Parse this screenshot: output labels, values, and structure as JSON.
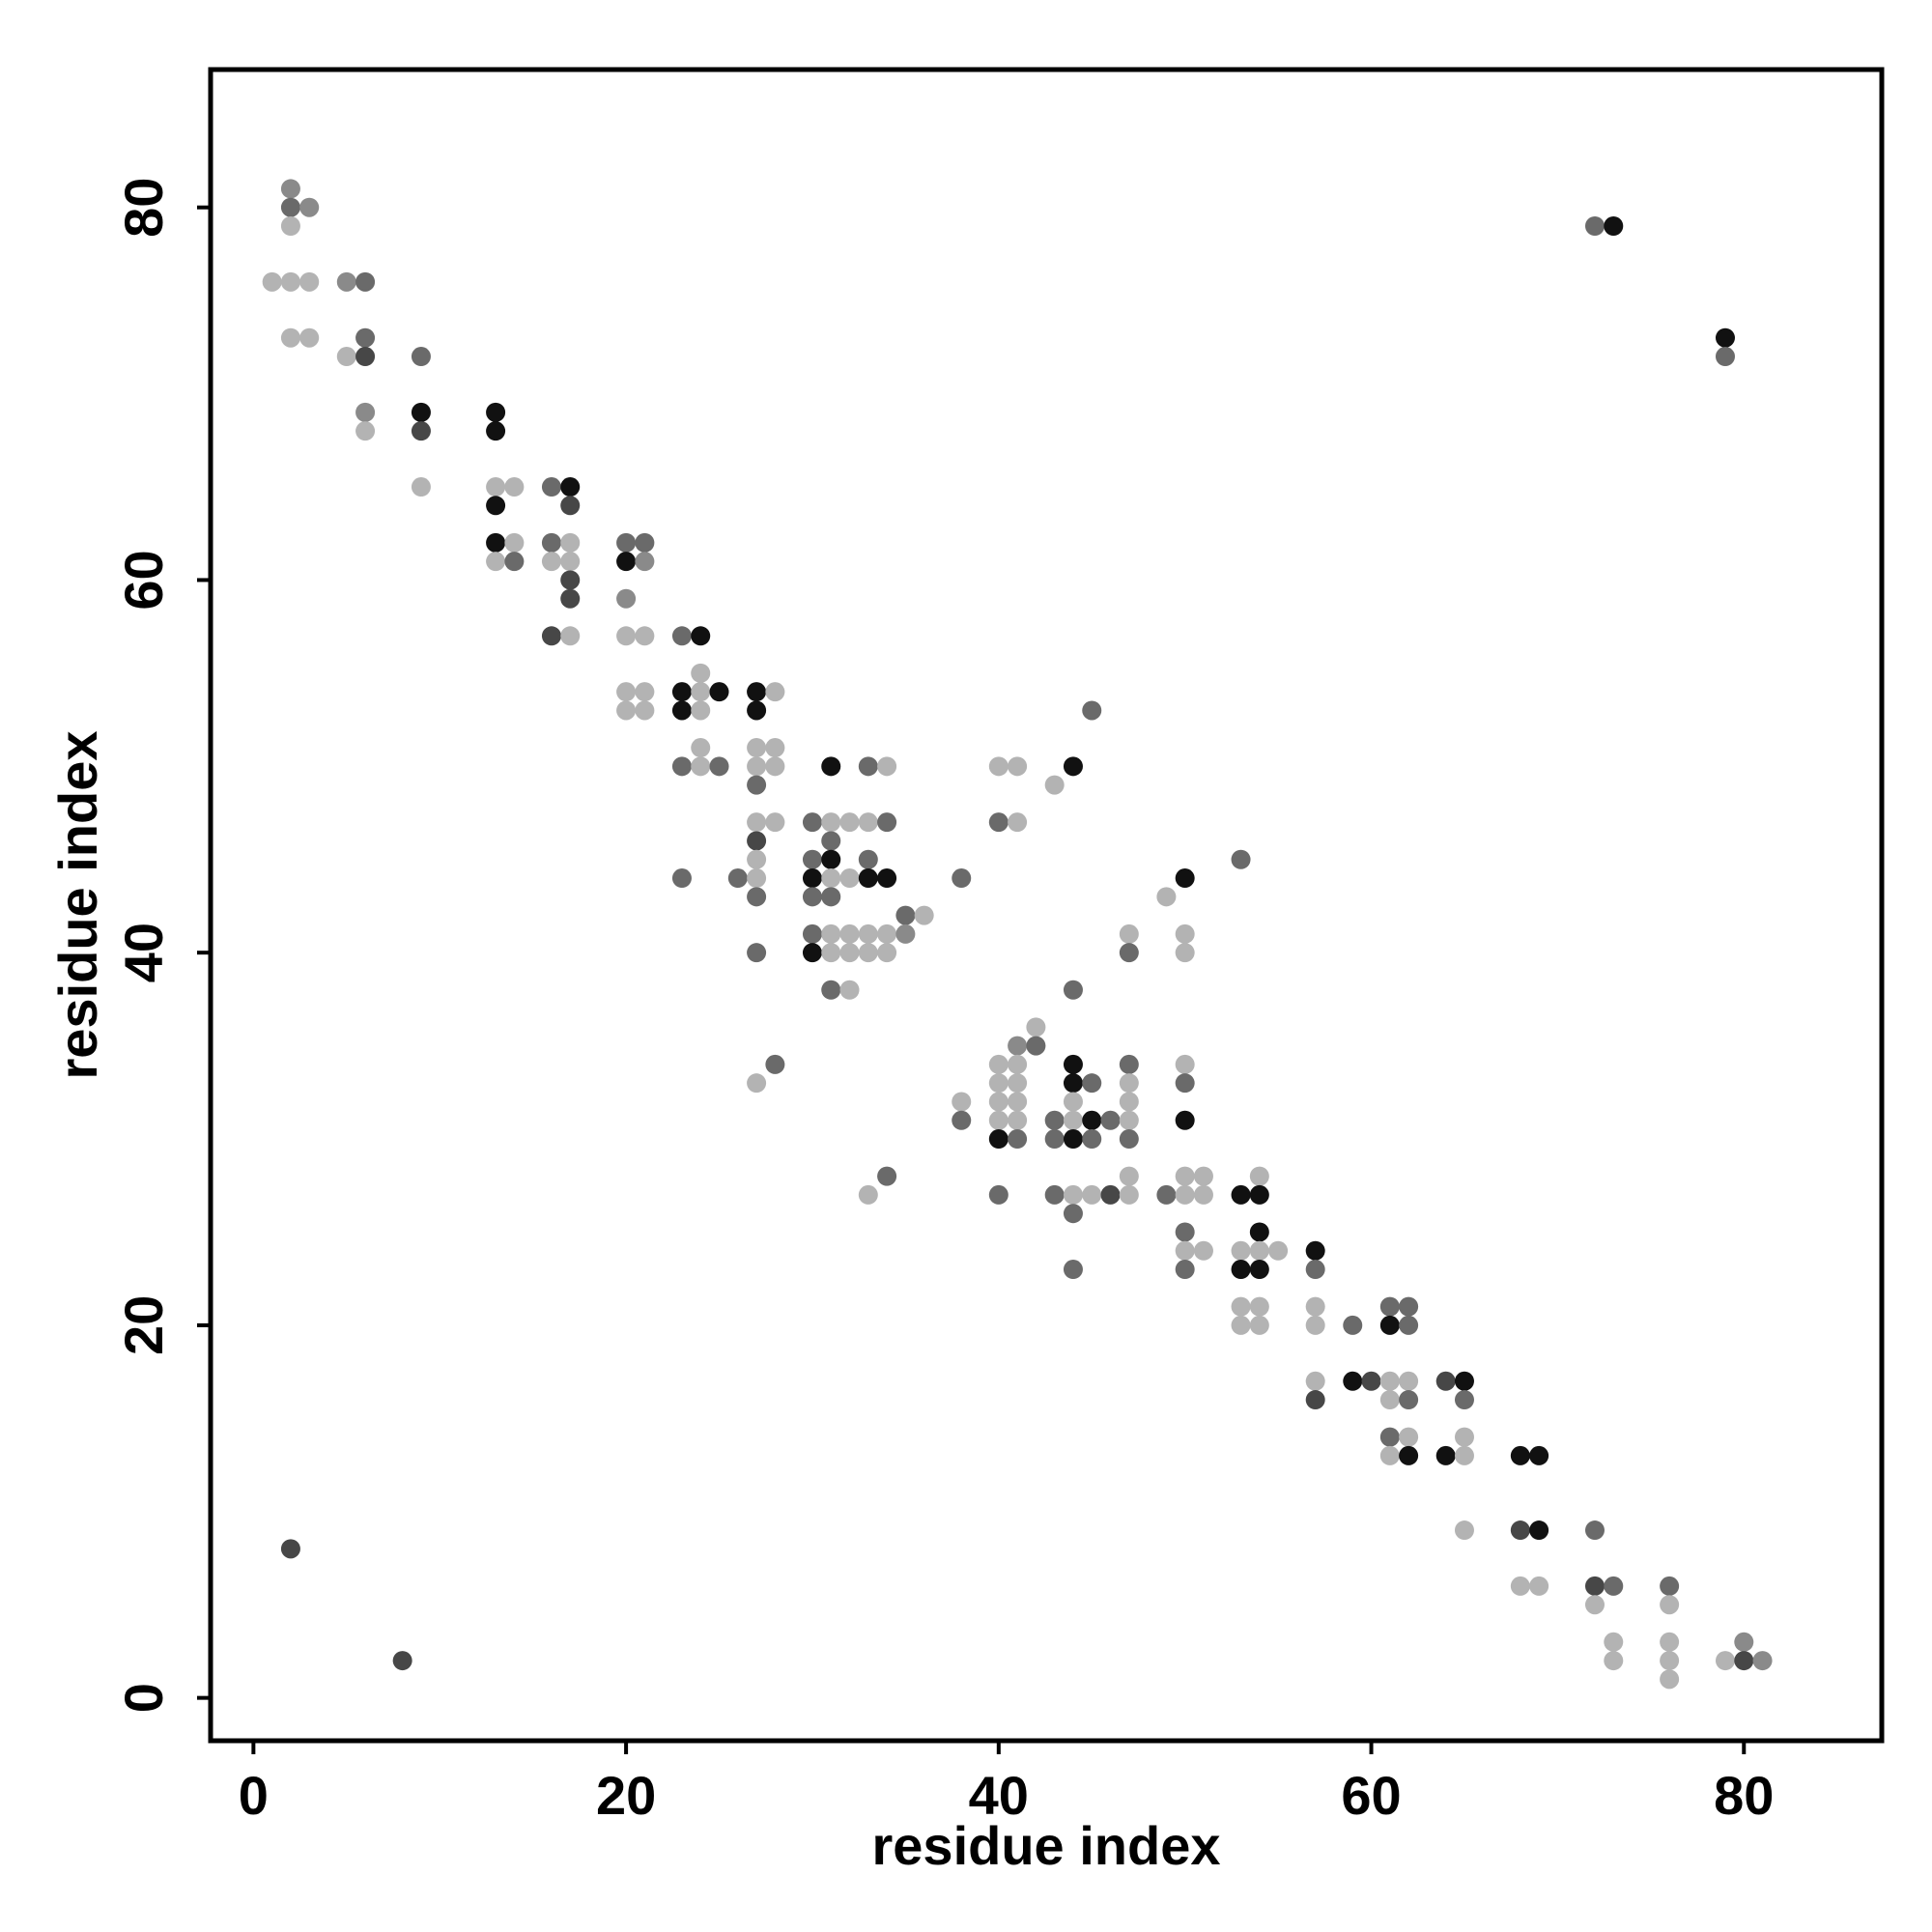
{
  "chart_data": {
    "type": "scatter",
    "title": "",
    "xlabel": "residue index",
    "ylabel": "residue index",
    "xlim": [
      -2.3,
      87.4
    ],
    "ylim": [
      -2.3,
      87.4
    ],
    "xticks": [
      0,
      20,
      40,
      60,
      80
    ],
    "yticks": [
      0,
      20,
      40,
      60,
      80
    ],
    "grid": false,
    "legend": "none",
    "shade_colors": {
      "light": "#b3b3b3",
      "mid": "#8a8a8a",
      "dark": "#6a6a6a",
      "darker": "#474747",
      "black": "#111111"
    },
    "points": [
      {
        "x": 2,
        "y": 81,
        "shade": "mid"
      },
      {
        "x": 2,
        "y": 80,
        "shade": "dark"
      },
      {
        "x": 3,
        "y": 80,
        "shade": "mid"
      },
      {
        "x": 2,
        "y": 79,
        "shade": "light"
      },
      {
        "x": 1,
        "y": 76,
        "shade": "light"
      },
      {
        "x": 2,
        "y": 76,
        "shade": "light"
      },
      {
        "x": 3,
        "y": 76,
        "shade": "light"
      },
      {
        "x": 5,
        "y": 76,
        "shade": "mid"
      },
      {
        "x": 6,
        "y": 76,
        "shade": "dark"
      },
      {
        "x": 2,
        "y": 73,
        "shade": "light"
      },
      {
        "x": 3,
        "y": 73,
        "shade": "light"
      },
      {
        "x": 6,
        "y": 73,
        "shade": "dark"
      },
      {
        "x": 5,
        "y": 72,
        "shade": "light"
      },
      {
        "x": 6,
        "y": 72,
        "shade": "darker"
      },
      {
        "x": 9,
        "y": 72,
        "shade": "dark"
      },
      {
        "x": 6,
        "y": 69,
        "shade": "mid"
      },
      {
        "x": 9,
        "y": 69,
        "shade": "black"
      },
      {
        "x": 13,
        "y": 69,
        "shade": "black"
      },
      {
        "x": 6,
        "y": 68,
        "shade": "light"
      },
      {
        "x": 9,
        "y": 68,
        "shade": "darker"
      },
      {
        "x": 13,
        "y": 68,
        "shade": "black"
      },
      {
        "x": 9,
        "y": 65,
        "shade": "light"
      },
      {
        "x": 13,
        "y": 65,
        "shade": "light"
      },
      {
        "x": 14,
        "y": 65,
        "shade": "light"
      },
      {
        "x": 16,
        "y": 65,
        "shade": "dark"
      },
      {
        "x": 17,
        "y": 65,
        "shade": "black"
      },
      {
        "x": 13,
        "y": 64,
        "shade": "black"
      },
      {
        "x": 17,
        "y": 64,
        "shade": "darker"
      },
      {
        "x": 13,
        "y": 62,
        "shade": "black"
      },
      {
        "x": 14,
        "y": 62,
        "shade": "light"
      },
      {
        "x": 16,
        "y": 62,
        "shade": "dark"
      },
      {
        "x": 17,
        "y": 62,
        "shade": "light"
      },
      {
        "x": 20,
        "y": 62,
        "shade": "dark"
      },
      {
        "x": 21,
        "y": 62,
        "shade": "dark"
      },
      {
        "x": 13,
        "y": 61,
        "shade": "light"
      },
      {
        "x": 14,
        "y": 61,
        "shade": "dark"
      },
      {
        "x": 16,
        "y": 61,
        "shade": "light"
      },
      {
        "x": 17,
        "y": 61,
        "shade": "light"
      },
      {
        "x": 20,
        "y": 61,
        "shade": "black"
      },
      {
        "x": 21,
        "y": 61,
        "shade": "mid"
      },
      {
        "x": 17,
        "y": 60,
        "shade": "darker"
      },
      {
        "x": 17,
        "y": 59,
        "shade": "darker"
      },
      {
        "x": 20,
        "y": 59,
        "shade": "mid"
      },
      {
        "x": 16,
        "y": 57,
        "shade": "darker"
      },
      {
        "x": 17,
        "y": 57,
        "shade": "light"
      },
      {
        "x": 20,
        "y": 57,
        "shade": "light"
      },
      {
        "x": 21,
        "y": 57,
        "shade": "light"
      },
      {
        "x": 23,
        "y": 57,
        "shade": "dark"
      },
      {
        "x": 24,
        "y": 57,
        "shade": "black"
      },
      {
        "x": 24,
        "y": 55,
        "shade": "light"
      },
      {
        "x": 20,
        "y": 54,
        "shade": "light"
      },
      {
        "x": 21,
        "y": 54,
        "shade": "light"
      },
      {
        "x": 23,
        "y": 54,
        "shade": "black"
      },
      {
        "x": 24,
        "y": 54,
        "shade": "light"
      },
      {
        "x": 25,
        "y": 54,
        "shade": "black"
      },
      {
        "x": 27,
        "y": 54,
        "shade": "black"
      },
      {
        "x": 28,
        "y": 54,
        "shade": "light"
      },
      {
        "x": 20,
        "y": 53,
        "shade": "light"
      },
      {
        "x": 21,
        "y": 53,
        "shade": "light"
      },
      {
        "x": 23,
        "y": 53,
        "shade": "black"
      },
      {
        "x": 24,
        "y": 53,
        "shade": "light"
      },
      {
        "x": 27,
        "y": 53,
        "shade": "black"
      },
      {
        "x": 45,
        "y": 53,
        "shade": "dark"
      },
      {
        "x": 24,
        "y": 51,
        "shade": "light"
      },
      {
        "x": 27,
        "y": 51,
        "shade": "light"
      },
      {
        "x": 28,
        "y": 51,
        "shade": "light"
      },
      {
        "x": 23,
        "y": 50,
        "shade": "dark"
      },
      {
        "x": 24,
        "y": 50,
        "shade": "light"
      },
      {
        "x": 25,
        "y": 50,
        "shade": "dark"
      },
      {
        "x": 27,
        "y": 50,
        "shade": "light"
      },
      {
        "x": 28,
        "y": 50,
        "shade": "light"
      },
      {
        "x": 31,
        "y": 50,
        "shade": "black"
      },
      {
        "x": 33,
        "y": 50,
        "shade": "dark"
      },
      {
        "x": 34,
        "y": 50,
        "shade": "light"
      },
      {
        "x": 40,
        "y": 50,
        "shade": "light"
      },
      {
        "x": 41,
        "y": 50,
        "shade": "light"
      },
      {
        "x": 44,
        "y": 50,
        "shade": "black"
      },
      {
        "x": 27,
        "y": 49,
        "shade": "dark"
      },
      {
        "x": 43,
        "y": 49,
        "shade": "light"
      },
      {
        "x": 27,
        "y": 47,
        "shade": "light"
      },
      {
        "x": 28,
        "y": 47,
        "shade": "light"
      },
      {
        "x": 30,
        "y": 47,
        "shade": "dark"
      },
      {
        "x": 31,
        "y": 47,
        "shade": "light"
      },
      {
        "x": 32,
        "y": 47,
        "shade": "light"
      },
      {
        "x": 33,
        "y": 47,
        "shade": "light"
      },
      {
        "x": 34,
        "y": 47,
        "shade": "dark"
      },
      {
        "x": 40,
        "y": 47,
        "shade": "dark"
      },
      {
        "x": 41,
        "y": 47,
        "shade": "light"
      },
      {
        "x": 27,
        "y": 46,
        "shade": "darker"
      },
      {
        "x": 31,
        "y": 46,
        "shade": "dark"
      },
      {
        "x": 27,
        "y": 45,
        "shade": "light"
      },
      {
        "x": 30,
        "y": 45,
        "shade": "dark"
      },
      {
        "x": 31,
        "y": 45,
        "shade": "black"
      },
      {
        "x": 33,
        "y": 45,
        "shade": "dark"
      },
      {
        "x": 53,
        "y": 45,
        "shade": "dark"
      },
      {
        "x": 23,
        "y": 44,
        "shade": "dark"
      },
      {
        "x": 26,
        "y": 44,
        "shade": "dark"
      },
      {
        "x": 27,
        "y": 44,
        "shade": "light"
      },
      {
        "x": 30,
        "y": 44,
        "shade": "black"
      },
      {
        "x": 31,
        "y": 44,
        "shade": "light"
      },
      {
        "x": 32,
        "y": 44,
        "shade": "light"
      },
      {
        "x": 33,
        "y": 44,
        "shade": "black"
      },
      {
        "x": 34,
        "y": 44,
        "shade": "black"
      },
      {
        "x": 38,
        "y": 44,
        "shade": "dark"
      },
      {
        "x": 50,
        "y": 44,
        "shade": "black"
      },
      {
        "x": 27,
        "y": 43,
        "shade": "dark"
      },
      {
        "x": 30,
        "y": 43,
        "shade": "dark"
      },
      {
        "x": 31,
        "y": 43,
        "shade": "dark"
      },
      {
        "x": 49,
        "y": 43,
        "shade": "light"
      },
      {
        "x": 35,
        "y": 42,
        "shade": "dark"
      },
      {
        "x": 36,
        "y": 42,
        "shade": "light"
      },
      {
        "x": 30,
        "y": 41,
        "shade": "dark"
      },
      {
        "x": 31,
        "y": 41,
        "shade": "light"
      },
      {
        "x": 32,
        "y": 41,
        "shade": "light"
      },
      {
        "x": 33,
        "y": 41,
        "shade": "light"
      },
      {
        "x": 34,
        "y": 41,
        "shade": "light"
      },
      {
        "x": 35,
        "y": 41,
        "shade": "mid"
      },
      {
        "x": 47,
        "y": 41,
        "shade": "light"
      },
      {
        "x": 50,
        "y": 41,
        "shade": "light"
      },
      {
        "x": 27,
        "y": 40,
        "shade": "dark"
      },
      {
        "x": 30,
        "y": 40,
        "shade": "black"
      },
      {
        "x": 31,
        "y": 40,
        "shade": "light"
      },
      {
        "x": 32,
        "y": 40,
        "shade": "light"
      },
      {
        "x": 33,
        "y": 40,
        "shade": "light"
      },
      {
        "x": 34,
        "y": 40,
        "shade": "light"
      },
      {
        "x": 47,
        "y": 40,
        "shade": "dark"
      },
      {
        "x": 50,
        "y": 40,
        "shade": "light"
      },
      {
        "x": 31,
        "y": 38,
        "shade": "dark"
      },
      {
        "x": 32,
        "y": 38,
        "shade": "light"
      },
      {
        "x": 44,
        "y": 38,
        "shade": "dark"
      },
      {
        "x": 42,
        "y": 36,
        "shade": "light"
      },
      {
        "x": 41,
        "y": 35,
        "shade": "mid"
      },
      {
        "x": 42,
        "y": 35,
        "shade": "dark"
      },
      {
        "x": 28,
        "y": 34,
        "shade": "dark"
      },
      {
        "x": 40,
        "y": 34,
        "shade": "light"
      },
      {
        "x": 41,
        "y": 34,
        "shade": "light"
      },
      {
        "x": 44,
        "y": 34,
        "shade": "black"
      },
      {
        "x": 47,
        "y": 34,
        "shade": "dark"
      },
      {
        "x": 50,
        "y": 34,
        "shade": "light"
      },
      {
        "x": 27,
        "y": 33,
        "shade": "light"
      },
      {
        "x": 40,
        "y": 33,
        "shade": "light"
      },
      {
        "x": 41,
        "y": 33,
        "shade": "light"
      },
      {
        "x": 44,
        "y": 33,
        "shade": "black"
      },
      {
        "x": 45,
        "y": 33,
        "shade": "dark"
      },
      {
        "x": 47,
        "y": 33,
        "shade": "light"
      },
      {
        "x": 50,
        "y": 33,
        "shade": "dark"
      },
      {
        "x": 38,
        "y": 32,
        "shade": "light"
      },
      {
        "x": 40,
        "y": 32,
        "shade": "light"
      },
      {
        "x": 41,
        "y": 32,
        "shade": "light"
      },
      {
        "x": 44,
        "y": 32,
        "shade": "light"
      },
      {
        "x": 47,
        "y": 32,
        "shade": "light"
      },
      {
        "x": 38,
        "y": 31,
        "shade": "dark"
      },
      {
        "x": 40,
        "y": 31,
        "shade": "light"
      },
      {
        "x": 41,
        "y": 31,
        "shade": "light"
      },
      {
        "x": 43,
        "y": 31,
        "shade": "dark"
      },
      {
        "x": 44,
        "y": 31,
        "shade": "light"
      },
      {
        "x": 45,
        "y": 31,
        "shade": "black"
      },
      {
        "x": 46,
        "y": 31,
        "shade": "dark"
      },
      {
        "x": 47,
        "y": 31,
        "shade": "light"
      },
      {
        "x": 50,
        "y": 31,
        "shade": "black"
      },
      {
        "x": 40,
        "y": 30,
        "shade": "black"
      },
      {
        "x": 41,
        "y": 30,
        "shade": "dark"
      },
      {
        "x": 43,
        "y": 30,
        "shade": "dark"
      },
      {
        "x": 44,
        "y": 30,
        "shade": "black"
      },
      {
        "x": 45,
        "y": 30,
        "shade": "dark"
      },
      {
        "x": 47,
        "y": 30,
        "shade": "dark"
      },
      {
        "x": 34,
        "y": 28,
        "shade": "dark"
      },
      {
        "x": 47,
        "y": 28,
        "shade": "light"
      },
      {
        "x": 50,
        "y": 28,
        "shade": "light"
      },
      {
        "x": 51,
        "y": 28,
        "shade": "light"
      },
      {
        "x": 54,
        "y": 28,
        "shade": "light"
      },
      {
        "x": 33,
        "y": 27,
        "shade": "light"
      },
      {
        "x": 40,
        "y": 27,
        "shade": "dark"
      },
      {
        "x": 43,
        "y": 27,
        "shade": "dark"
      },
      {
        "x": 44,
        "y": 27,
        "shade": "light"
      },
      {
        "x": 45,
        "y": 27,
        "shade": "light"
      },
      {
        "x": 46,
        "y": 27,
        "shade": "darker"
      },
      {
        "x": 47,
        "y": 27,
        "shade": "light"
      },
      {
        "x": 49,
        "y": 27,
        "shade": "dark"
      },
      {
        "x": 50,
        "y": 27,
        "shade": "light"
      },
      {
        "x": 51,
        "y": 27,
        "shade": "light"
      },
      {
        "x": 53,
        "y": 27,
        "shade": "black"
      },
      {
        "x": 54,
        "y": 27,
        "shade": "black"
      },
      {
        "x": 44,
        "y": 26,
        "shade": "dark"
      },
      {
        "x": 50,
        "y": 25,
        "shade": "dark"
      },
      {
        "x": 54,
        "y": 25,
        "shade": "black"
      },
      {
        "x": 50,
        "y": 24,
        "shade": "light"
      },
      {
        "x": 51,
        "y": 24,
        "shade": "light"
      },
      {
        "x": 53,
        "y": 24,
        "shade": "light"
      },
      {
        "x": 54,
        "y": 24,
        "shade": "light"
      },
      {
        "x": 55,
        "y": 24,
        "shade": "light"
      },
      {
        "x": 57,
        "y": 24,
        "shade": "black"
      },
      {
        "x": 44,
        "y": 23,
        "shade": "dark"
      },
      {
        "x": 50,
        "y": 23,
        "shade": "dark"
      },
      {
        "x": 53,
        "y": 23,
        "shade": "black"
      },
      {
        "x": 54,
        "y": 23,
        "shade": "black"
      },
      {
        "x": 57,
        "y": 23,
        "shade": "dark"
      },
      {
        "x": 53,
        "y": 21,
        "shade": "light"
      },
      {
        "x": 54,
        "y": 21,
        "shade": "light"
      },
      {
        "x": 57,
        "y": 21,
        "shade": "light"
      },
      {
        "x": 61,
        "y": 21,
        "shade": "dark"
      },
      {
        "x": 62,
        "y": 21,
        "shade": "dark"
      },
      {
        "x": 53,
        "y": 20,
        "shade": "light"
      },
      {
        "x": 54,
        "y": 20,
        "shade": "light"
      },
      {
        "x": 57,
        "y": 20,
        "shade": "light"
      },
      {
        "x": 59,
        "y": 20,
        "shade": "dark"
      },
      {
        "x": 61,
        "y": 20,
        "shade": "black"
      },
      {
        "x": 62,
        "y": 20,
        "shade": "dark"
      },
      {
        "x": 57,
        "y": 17,
        "shade": "light"
      },
      {
        "x": 59,
        "y": 17,
        "shade": "black"
      },
      {
        "x": 60,
        "y": 17,
        "shade": "darker"
      },
      {
        "x": 61,
        "y": 17,
        "shade": "light"
      },
      {
        "x": 62,
        "y": 17,
        "shade": "light"
      },
      {
        "x": 64,
        "y": 17,
        "shade": "darker"
      },
      {
        "x": 65,
        "y": 17,
        "shade": "black"
      },
      {
        "x": 57,
        "y": 16,
        "shade": "darker"
      },
      {
        "x": 61,
        "y": 16,
        "shade": "light"
      },
      {
        "x": 62,
        "y": 16,
        "shade": "dark"
      },
      {
        "x": 65,
        "y": 16,
        "shade": "dark"
      },
      {
        "x": 61,
        "y": 14,
        "shade": "dark"
      },
      {
        "x": 62,
        "y": 14,
        "shade": "light"
      },
      {
        "x": 65,
        "y": 14,
        "shade": "light"
      },
      {
        "x": 61,
        "y": 13,
        "shade": "light"
      },
      {
        "x": 62,
        "y": 13,
        "shade": "black"
      },
      {
        "x": 64,
        "y": 13,
        "shade": "black"
      },
      {
        "x": 65,
        "y": 13,
        "shade": "light"
      },
      {
        "x": 68,
        "y": 13,
        "shade": "black"
      },
      {
        "x": 69,
        "y": 13,
        "shade": "black"
      },
      {
        "x": 65,
        "y": 9,
        "shade": "light"
      },
      {
        "x": 68,
        "y": 9,
        "shade": "darker"
      },
      {
        "x": 69,
        "y": 9,
        "shade": "black"
      },
      {
        "x": 72,
        "y": 9,
        "shade": "dark"
      },
      {
        "x": 2,
        "y": 8,
        "shade": "darker"
      },
      {
        "x": 68,
        "y": 6,
        "shade": "light"
      },
      {
        "x": 69,
        "y": 6,
        "shade": "light"
      },
      {
        "x": 72,
        "y": 6,
        "shade": "darker"
      },
      {
        "x": 73,
        "y": 6,
        "shade": "dark"
      },
      {
        "x": 76,
        "y": 6,
        "shade": "dark"
      },
      {
        "x": 72,
        "y": 5,
        "shade": "light"
      },
      {
        "x": 76,
        "y": 5,
        "shade": "light"
      },
      {
        "x": 73,
        "y": 3,
        "shade": "light"
      },
      {
        "x": 76,
        "y": 3,
        "shade": "light"
      },
      {
        "x": 80,
        "y": 3,
        "shade": "mid"
      },
      {
        "x": 8,
        "y": 2,
        "shade": "darker"
      },
      {
        "x": 73,
        "y": 2,
        "shade": "light"
      },
      {
        "x": 76,
        "y": 2,
        "shade": "light"
      },
      {
        "x": 79,
        "y": 2,
        "shade": "light"
      },
      {
        "x": 80,
        "y": 2,
        "shade": "darker"
      },
      {
        "x": 81,
        "y": 2,
        "shade": "mid"
      },
      {
        "x": 76,
        "y": 1,
        "shade": "light"
      },
      {
        "x": 72,
        "y": 79,
        "shade": "dark"
      },
      {
        "x": 73,
        "y": 79,
        "shade": "black"
      },
      {
        "x": 79,
        "y": 73,
        "shade": "black"
      },
      {
        "x": 79,
        "y": 72,
        "shade": "dark"
      }
    ]
  }
}
